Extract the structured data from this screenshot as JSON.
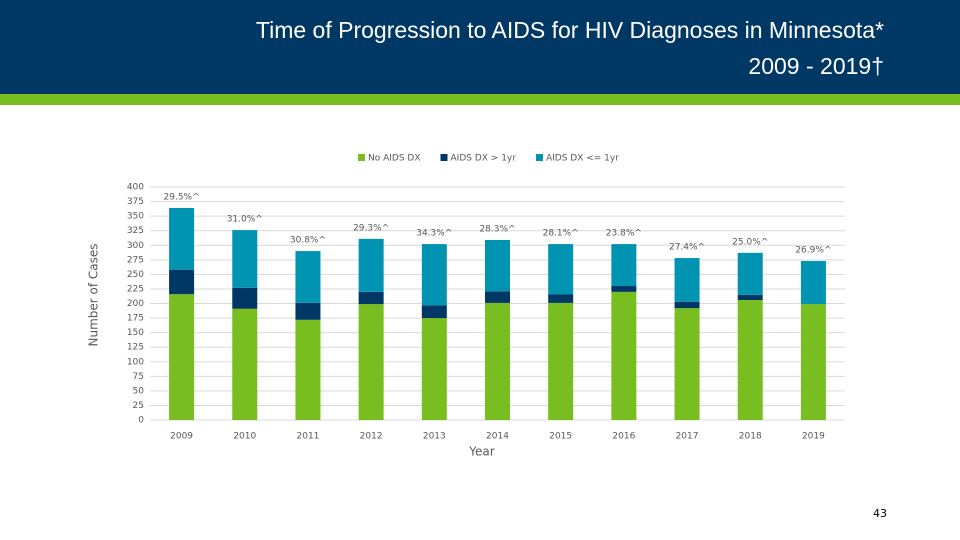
{
  "chart_data": {
    "type": "stacked_bar",
    "title": "Time of Progression to AIDS for HIV Diagnoses in Minnesota*",
    "subtitle": "2009 - 2019†",
    "x_label": "Year",
    "y_label": "Number of Cases",
    "categories": [
      "2009",
      "2010",
      "2011",
      "2012",
      "2013",
      "2014",
      "2015",
      "2016",
      "2017",
      "2018",
      "2019"
    ],
    "series": [
      {
        "name": "No AIDS DX",
        "color": "#78be20",
        "values": [
          216,
          191,
          172,
          199,
          175,
          201,
          201,
          220,
          192,
          206,
          199
        ]
      },
      {
        "name": "AIDS DX > 1yr",
        "color": "#003865",
        "values": [
          42,
          36,
          29,
          21,
          22,
          20,
          15,
          10,
          11,
          9,
          0
        ]
      },
      {
        "name": "AIDS DX <= 1yr",
        "color": "#0093b2",
        "values": [
          106,
          99,
          89,
          91,
          105,
          88,
          86,
          72,
          75,
          72,
          74
        ]
      }
    ],
    "annotations": [
      "29.5%^",
      "31.0%^",
      "30.8%^",
      "29.3%^",
      "34.3%^",
      "28.3%^",
      "28.1%^",
      "23.8%^",
      "27.4%^",
      "25.0%^",
      "26.9%^"
    ],
    "ylim": [
      0,
      400
    ],
    "yticks": [
      0,
      25,
      50,
      75,
      100,
      125,
      150,
      175,
      200,
      225,
      250,
      275,
      300,
      325,
      350,
      375,
      400
    ],
    "grid": true,
    "legend": "top"
  },
  "page_number": "43"
}
